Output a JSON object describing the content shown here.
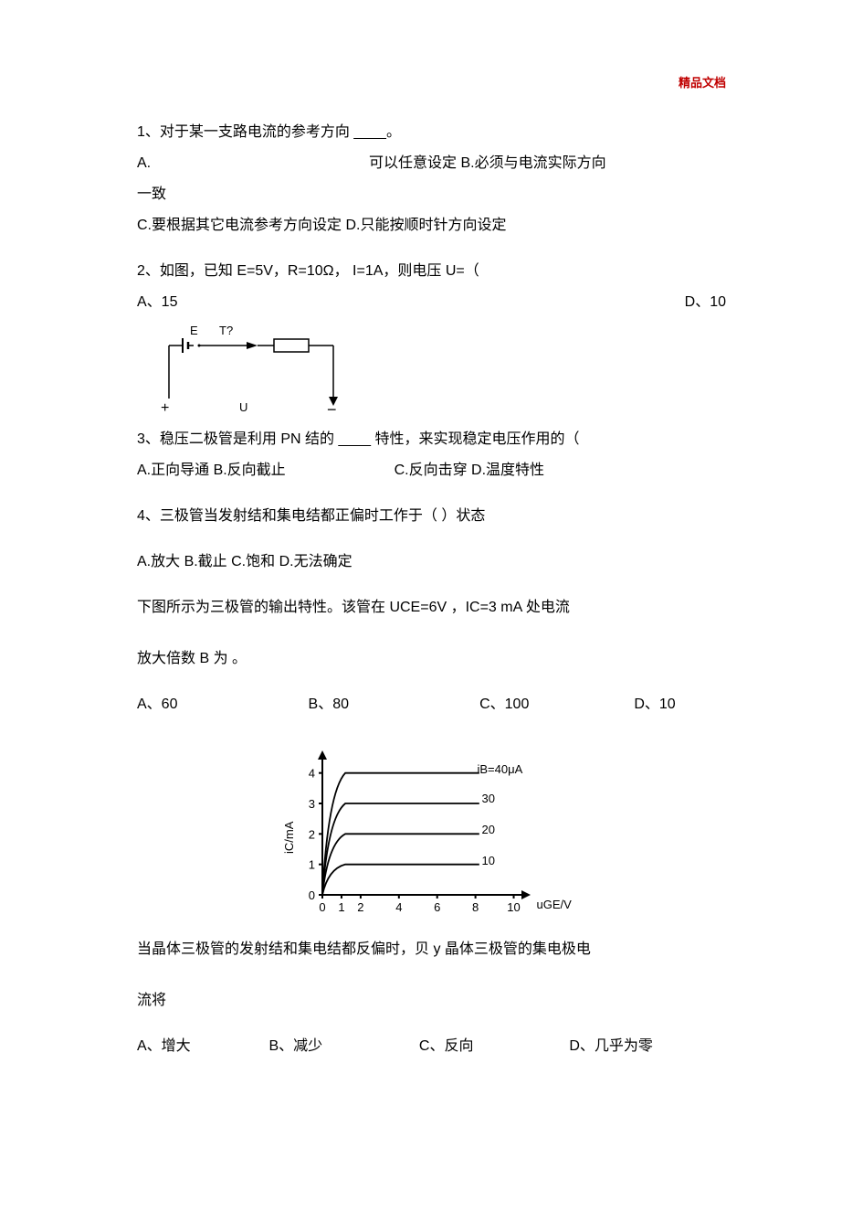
{
  "page": {
    "header_mark": "精品文档",
    "background": "#ffffff",
    "text_color": "#000000",
    "mark_color": "#c00000"
  },
  "q1": {
    "stem": "1、对于某一支路电流的参考方向   ____。",
    "line2_left": "A.",
    "line2_right": "可以任意设定  B.必须与电流实际方向",
    "line3": "一致",
    "line4": "C.要根据其它电流参考方向设定           D.只能按顺时针方向设定"
  },
  "q2": {
    "stem": "2、如图，已知 E=5V，R=10Ω，    I=1A，则电压 U=（",
    "opt_a": "A、15",
    "opt_d": "D、10",
    "circuit": {
      "E_label": "E",
      "T_label": "T?",
      "U_label": "U",
      "plus": "+",
      "minus": "−",
      "stroke": "#000000",
      "stroke_width": 1.5
    }
  },
  "q3": {
    "stem": "3、稳压二极管是利用 PN 结的  ____ 特性，来实现稳定电压作用的（",
    "opts_left": "A.正向导通  B.反向截止",
    "opts_right": "C.反向击穿  D.温度特性"
  },
  "q4": {
    "stem": "4、三极管当发射结和集电结都正偏时工作于（          ）状态",
    "opts": "A.放大  B.截止  C.饱和  D.无法确定"
  },
  "q5": {
    "line1": "下图所示为三极管的输出特性。该管在    UCE=6V ，IC=3 mA 处电流",
    "line2": "放大倍数 B 为        。",
    "options": {
      "a": "A、60",
      "b": "B、80",
      "c": "C、100",
      "d": "D、10"
    },
    "chart": {
      "type": "line",
      "y_label": "iC/mA",
      "x_label": "uGE/V",
      "title_iB": "iB=40μA",
      "curve_labels": [
        "30",
        "20",
        "10"
      ],
      "x_ticks": [
        0,
        1,
        2,
        4,
        6,
        8,
        10
      ],
      "y_ticks": [
        0,
        1,
        2,
        3,
        4
      ],
      "y_max": 4.5,
      "x_max": 10.5,
      "curves_plateau": [
        4,
        3,
        2,
        1
      ],
      "curve_riseX": 1.2,
      "line_stroke": "#000000",
      "line_width": 1.5,
      "tick_fontsize": 13,
      "background": "#ffffff"
    }
  },
  "q6": {
    "line1": "当晶体三极管的发射结和集电结都反偏时，贝 y 晶体三极管的集电极电",
    "line2": "流将",
    "options": {
      "a": "A、增大",
      "b": "B、减少",
      "c": "C、反向",
      "d": "D、几乎为零"
    }
  }
}
